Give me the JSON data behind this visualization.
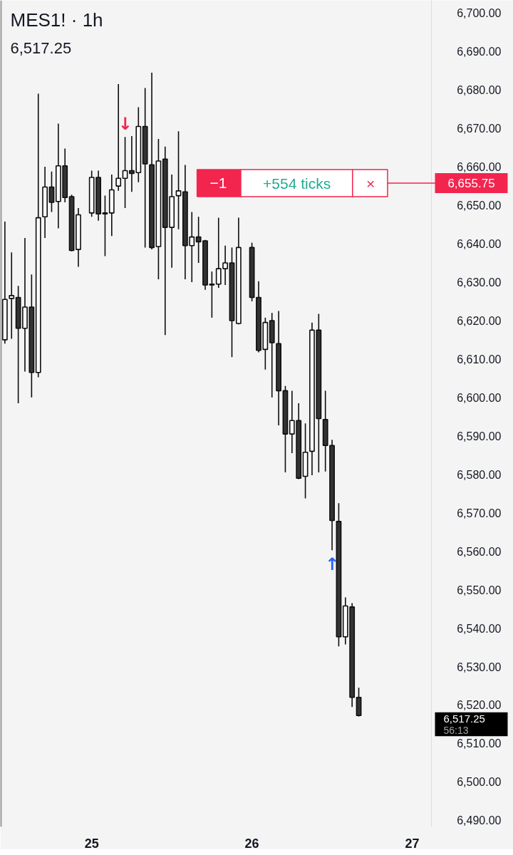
{
  "chart_data": {
    "type": "candlestick",
    "title": "MES1! · 1h",
    "subtitle": "6,517.25",
    "x": [
      24.4583,
      24.5,
      24.5417,
      24.5833,
      24.625,
      24.6667,
      24.7083,
      24.75,
      24.7917,
      24.8333,
      24.875,
      24.9167,
      25,
      25.0417,
      25.0833,
      25.125,
      25.1667,
      25.2083,
      25.25,
      25.2917,
      25.3333,
      25.375,
      25.4167,
      25.4583,
      25.5,
      25.5417,
      25.5833,
      25.625,
      25.6667,
      25.7083,
      25.75,
      25.7917,
      25.8333,
      25.875,
      25.9167,
      26,
      26.0417,
      26.0833,
      26.125,
      26.1667,
      26.2083,
      26.25,
      26.2917,
      26.3333,
      26.375,
      26.4167,
      26.4583,
      26.5,
      26.5417,
      26.5833,
      26.625,
      26.6667
    ],
    "ohlc": [
      [
        6615,
        6645.75,
        6614,
        6625.5
      ],
      [
        6625.75,
        6637.75,
        6615.25,
        6626.5
      ],
      [
        6626,
        6629,
        6598.5,
        6618
      ],
      [
        6618,
        6641.5,
        6606.75,
        6623.5
      ],
      [
        6623.5,
        6632,
        6600,
        6606.5
      ],
      [
        6606.5,
        6679,
        6605.25,
        6646.75
      ],
      [
        6647,
        6660,
        6641.5,
        6654.75
      ],
      [
        6654.75,
        6658.75,
        6648.25,
        6650.75
      ],
      [
        6651,
        6671.25,
        6644,
        6660.25
      ],
      [
        6660.25,
        6664.75,
        6650.75,
        6652
      ],
      [
        6652.25,
        6652.75,
        6638,
        6638.25
      ],
      [
        6638.5,
        6649.25,
        6634,
        6647.5
      ],
      [
        6648,
        6659,
        6647,
        6657.25
      ],
      [
        6657.25,
        6659,
        6646,
        6647.75
      ],
      [
        6648,
        6652.5,
        6636.75,
        6647.75
      ],
      [
        6648,
        6658,
        6642,
        6654
      ],
      [
        6655,
        6681.5,
        6653.75,
        6657
      ],
      [
        6657,
        6667.75,
        6649.25,
        6659
      ],
      [
        6659,
        6668,
        6653.5,
        6658.25
      ],
      [
        6658.5,
        6675.5,
        6656,
        6670.5
      ],
      [
        6670.5,
        6680.5,
        6639,
        6660.75
      ],
      [
        6660.5,
        6684.5,
        6638.5,
        6639
      ],
      [
        6639.25,
        6667.25,
        6630.75,
        6661.5
      ],
      [
        6662,
        6665.25,
        6616.25,
        6644.25
      ],
      [
        6644.25,
        6658,
        6633.75,
        6652.25
      ],
      [
        6652.5,
        6669.25,
        6643.75,
        6653.75
      ],
      [
        6653.5,
        6660.5,
        6630.75,
        6639.5
      ],
      [
        6639.5,
        6648.25,
        6630,
        6641.75
      ],
      [
        6641.75,
        6647,
        6635,
        6640.5
      ],
      [
        6640.75,
        6641,
        6628,
        6629.25
      ],
      [
        6629.5,
        6632.75,
        6620.75,
        6629.25
      ],
      [
        6629.5,
        6646.75,
        6628.5,
        6633.5
      ],
      [
        6633.5,
        6639.5,
        6629.25,
        6635
      ],
      [
        6635,
        6639,
        6610.5,
        6620
      ],
      [
        6619.25,
        6646.75,
        6619,
        6639
      ],
      [
        6639,
        6640.25,
        6625,
        6626
      ],
      [
        6626,
        6630.25,
        6611.75,
        6612.25
      ],
      [
        6612.5,
        6620.75,
        6607.25,
        6619.5
      ],
      [
        6620,
        6622,
        6600,
        6614.25
      ],
      [
        6614,
        6622.5,
        6592.75,
        6601.75
      ],
      [
        6601.75,
        6603,
        6580.5,
        6590.5
      ],
      [
        6590.5,
        6601.75,
        6585.5,
        6594
      ],
      [
        6594,
        6598.5,
        6578.75,
        6579
      ],
      [
        6579.5,
        6593.25,
        6573.75,
        6585.75
      ],
      [
        6586,
        6619.5,
        6579.75,
        6617.5
      ],
      [
        6617.5,
        6621.75,
        6580.5,
        6594.5
      ],
      [
        6594.25,
        6601.75,
        6580.75,
        6587.5
      ],
      [
        6587.5,
        6589,
        6560.25,
        6568
      ],
      [
        6567.75,
        6572.5,
        6535.25,
        6537.75
      ],
      [
        6537.75,
        6548,
        6535.75,
        6545.75
      ],
      [
        6545.5,
        6546.5,
        6519.5,
        6522
      ],
      [
        6522,
        6524.5,
        6517,
        6517.25
      ]
    ],
    "colors": [
      "#ffffff",
      "#ffffff",
      "#333333",
      "#ffffff",
      "#333333",
      "#ffffff",
      "#ffffff",
      "#333333",
      "#ffffff",
      "#333333",
      "#333333",
      "#ffffff",
      "#ffffff",
      "#333333",
      "#333333",
      "#ffffff",
      "#ffffff",
      "#ffffff",
      "#333333",
      "#ffffff",
      "#333333",
      "#333333",
      "#ffffff",
      "#333333",
      "#ffffff",
      "#ffffff",
      "#333333",
      "#ffffff",
      "#333333",
      "#333333",
      "#333333",
      "#ffffff",
      "#ffffff",
      "#333333",
      "#ffffff",
      "#333333",
      "#333333",
      "#ffffff",
      "#333333",
      "#333333",
      "#333333",
      "#ffffff",
      "#333333",
      "#ffffff",
      "#ffffff",
      "#333333",
      "#333333",
      "#333333",
      "#333333",
      "#ffffff",
      "#333333",
      "#333333"
    ],
    "xlim": [
      24.43,
      27.12
    ],
    "ylim": [
      6488.3,
      6703.3
    ],
    "xticks": [
      25,
      26,
      27
    ],
    "yticks": [
      {
        "value": 6490,
        "label": "6,490.00"
      },
      {
        "value": 6500,
        "label": "6,500.00"
      },
      {
        "value": 6510,
        "label": "6,510.00"
      },
      {
        "value": 6520,
        "label": "6,520.00"
      },
      {
        "value": 6530,
        "label": "6,530.00"
      },
      {
        "value": 6540,
        "label": "6,540.00"
      },
      {
        "value": 6550,
        "label": "6,550.00"
      },
      {
        "value": 6560,
        "label": "6,560.00"
      },
      {
        "value": 6570,
        "label": "6,570.00"
      },
      {
        "value": 6580,
        "label": "6,580.00"
      },
      {
        "value": 6590,
        "label": "6,590.00"
      },
      {
        "value": 6600,
        "label": "6,600.00"
      },
      {
        "value": 6610,
        "label": "6,610.00"
      },
      {
        "value": 6620,
        "label": "6,620.00"
      },
      {
        "value": 6630,
        "label": "6,630.00"
      },
      {
        "value": 6640,
        "label": "6,640.00"
      },
      {
        "value": 6650,
        "label": "6,650.00"
      },
      {
        "value": 6660,
        "label": "6,660.00"
      },
      {
        "value": 6670,
        "label": "6,670.00"
      },
      {
        "value": 6680,
        "label": "6,680.00"
      },
      {
        "value": 6690,
        "label": "6,690.00"
      },
      {
        "value": 6700,
        "label": "6,700.00"
      }
    ],
    "ref_lines": [
      {
        "axis": "y",
        "value": 6655.75,
        "label": "6,655.75",
        "color": "#f2254f"
      }
    ],
    "annotations": [
      {
        "text": "↓",
        "x": 25.2083,
        "y": 6667.75
      },
      {
        "text": "↑",
        "x": 26.5,
        "y": 6560.25
      },
      {
        "text": "−1",
        "x": 25.79,
        "y": 6655.75
      },
      {
        "text": "+554 ticks",
        "x": 26.28,
        "y": 6655.75
      },
      {
        "text": "×",
        "x": 26.74,
        "y": 6655.75
      },
      "6,517.25",
      "56:13"
    ]
  }
}
